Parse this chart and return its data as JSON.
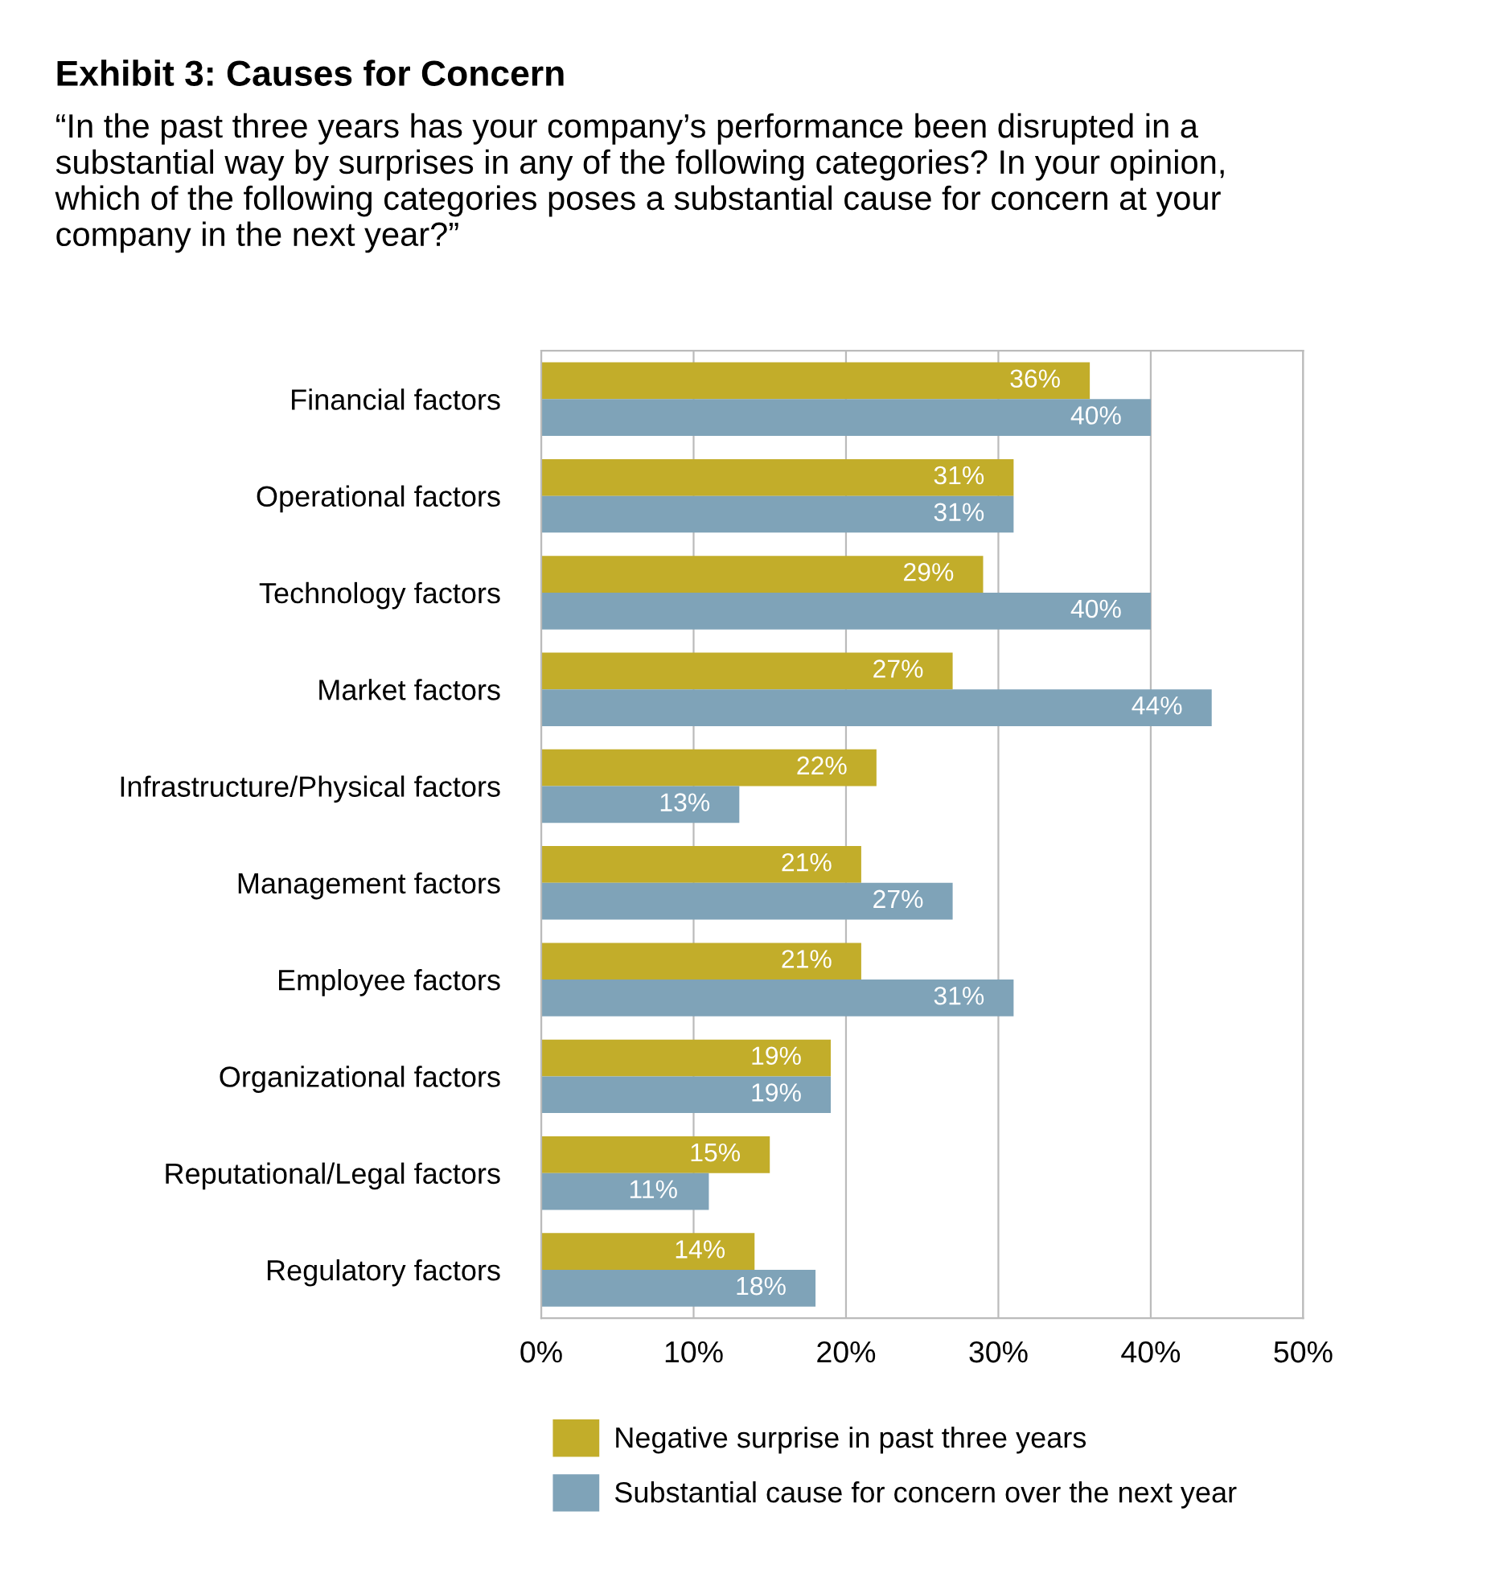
{
  "chart_data": {
    "type": "bar",
    "orientation": "horizontal",
    "title": "Exhibit 3: Causes for Concern",
    "subtitle": "“In the past three years has your company’s performance been disrupted in a\nsubstantial way by surprises in any of the following categories? In your opinion,\nwhich of the following categories poses a substantial cause for concern at your\ncompany in the next year?”",
    "categories": [
      "Financial factors",
      "Operational factors",
      "Technology factors",
      "Market factors",
      "Infrastructure/Physical factors",
      "Management factors",
      "Employee factors",
      "Organizational factors",
      "Reputational/Legal factors",
      "Regulatory factors"
    ],
    "series": [
      {
        "name": "Negative surprise in past three years",
        "color": "#c2ad2a",
        "values": [
          36,
          31,
          29,
          27,
          22,
          21,
          21,
          19,
          15,
          14
        ],
        "value_labels": [
          "36%",
          "31%",
          "29%",
          "27%",
          "22%",
          "21%",
          "21%",
          "19%",
          "15%",
          "14%"
        ]
      },
      {
        "name": "Substantial cause for concern over the next year",
        "color": "#7fa3b8",
        "values": [
          40,
          31,
          40,
          44,
          13,
          27,
          31,
          19,
          11,
          18
        ],
        "value_labels": [
          "40%",
          "31%",
          "40%",
          "44%",
          "13%",
          "27%",
          "31%",
          "19%",
          "11%",
          "18%"
        ]
      }
    ],
    "xlim": [
      0,
      50
    ],
    "xticks": [
      {
        "value": 0,
        "label": "0%"
      },
      {
        "value": 10,
        "label": "10%"
      },
      {
        "value": 20,
        "label": "20%"
      },
      {
        "value": 30,
        "label": "30%"
      },
      {
        "value": 40,
        "label": "40%"
      },
      {
        "value": 50,
        "label": "50%"
      }
    ],
    "grid": "x",
    "legend": "bottom"
  }
}
